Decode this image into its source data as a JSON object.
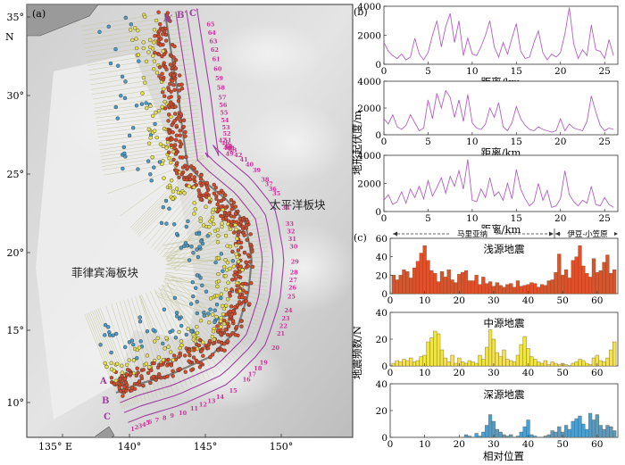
{
  "panel_a": {
    "label": "(a)",
    "north": "N",
    "lat_ticks": [
      "35°",
      "30°",
      "25°",
      "20°",
      "15°",
      "10°"
    ],
    "lon_ticks": [
      "135° E",
      "140°",
      "145°",
      "150°"
    ],
    "region_pacific": "太平洋板块",
    "region_philippine": "菲律宾海板块",
    "profile_lines": [
      "A",
      "B",
      "C"
    ],
    "profile_lines_top": [
      "A′",
      "B′",
      "C′"
    ],
    "colors": {
      "shallow": "#d24a2a",
      "intermediate": "#e6e04a",
      "deep": "#4a9ac8",
      "profile": "#a040a0",
      "numbers": "#d0309a"
    }
  },
  "panel_b": {
    "label": "(b)",
    "ylabel": "地形起伏度/m",
    "xlabel": "距离/km",
    "yticks": [
      0,
      2000,
      4000
    ],
    "xticks": [
      0,
      5,
      10,
      15,
      20,
      25
    ]
  },
  "panel_c": {
    "label": "(c)",
    "ylabel": "地震频数/N",
    "xlabel": "相对位置",
    "region_mariana": "马里亚纳",
    "region_izu": "伊豆-小笠原",
    "xticks": [
      0,
      10,
      20,
      30,
      40,
      50,
      60
    ],
    "subplots": [
      {
        "title": "浅源地震",
        "yticks": [
          0,
          20,
          40,
          60
        ]
      },
      {
        "title": "中源地震",
        "yticks": [
          0,
          20,
          40
        ]
      },
      {
        "title": "深源地震",
        "yticks": [
          0,
          20,
          40
        ]
      }
    ]
  },
  "chart_data": [
    {
      "type": "line",
      "panel": "b-1",
      "xlabel": "距离/km",
      "ylabel": "地形起伏度/m",
      "xlim": [
        0,
        26.5
      ],
      "ylim": [
        0,
        4000
      ],
      "x": [
        0,
        0.5,
        1,
        1.5,
        2,
        2.5,
        3,
        3.5,
        4,
        4.5,
        5,
        5.5,
        6,
        6.5,
        7,
        7.5,
        8,
        8.5,
        9,
        9.5,
        10,
        10.5,
        11,
        11.5,
        12,
        12.5,
        13,
        13.5,
        14,
        14.5,
        15,
        15.5,
        16,
        16.5,
        17,
        17.5,
        18,
        18.5,
        19,
        19.5,
        20,
        20.5,
        21,
        21.5,
        22,
        22.5,
        23,
        23.5,
        24,
        24.5,
        25,
        25.5,
        26
      ],
      "values": [
        1500,
        900,
        600,
        400,
        700,
        300,
        500,
        1800,
        700,
        300,
        800,
        2000,
        3000,
        1200,
        2600,
        3500,
        1500,
        3000,
        600,
        1800,
        700,
        600,
        1200,
        2000,
        3000,
        1200,
        500,
        1500,
        700,
        1800,
        2800,
        900,
        400,
        500,
        1500,
        2300,
        800,
        300,
        700,
        500,
        800,
        2100,
        3900,
        1400,
        400,
        1000,
        600,
        2700,
        1000,
        900,
        400,
        1700,
        600
      ]
    },
    {
      "type": "line",
      "panel": "b-2",
      "xlabel": "距离/km",
      "ylabel": "地形起伏度/m",
      "xlim": [
        0,
        26.5
      ],
      "ylim": [
        0,
        4000
      ],
      "x": [
        0,
        0.5,
        1,
        1.5,
        2,
        2.5,
        3,
        3.5,
        4,
        4.5,
        5,
        5.5,
        6,
        6.5,
        7,
        7.5,
        8,
        8.5,
        9,
        9.5,
        10,
        10.5,
        11,
        11.5,
        12,
        12.5,
        13,
        13.5,
        14,
        14.5,
        15,
        15.5,
        16,
        16.5,
        17,
        17.5,
        18,
        18.5,
        19,
        19.5,
        20,
        20.5,
        21,
        21.5,
        22,
        22.5,
        23,
        23.5,
        24,
        24.5,
        25,
        25.5,
        26
      ],
      "values": [
        1200,
        800,
        1500,
        600,
        400,
        700,
        1500,
        900,
        300,
        500,
        2600,
        1200,
        3100,
        2000,
        3300,
        2800,
        1300,
        2600,
        1000,
        3000,
        900,
        500,
        400,
        800,
        2000,
        1300,
        2400,
        600,
        300,
        900,
        2100,
        1200,
        700,
        400,
        300,
        600,
        400,
        300,
        200,
        300,
        1200,
        300,
        800,
        500,
        400,
        300,
        1000,
        2900,
        1700,
        700,
        300,
        500,
        400
      ]
    },
    {
      "type": "line",
      "panel": "b-3",
      "xlabel": "距离/km",
      "ylabel": "地形起伏度/m",
      "xlim": [
        0,
        26.5
      ],
      "ylim": [
        0,
        4000
      ],
      "x": [
        0,
        0.5,
        1,
        1.5,
        2,
        2.5,
        3,
        3.5,
        4,
        4.5,
        5,
        5.5,
        6,
        6.5,
        7,
        7.5,
        8,
        8.5,
        9,
        9.5,
        10,
        10.5,
        11,
        11.5,
        12,
        12.5,
        13,
        13.5,
        14,
        14.5,
        15,
        15.5,
        16,
        16.5,
        17,
        17.5,
        18,
        18.5,
        19,
        19.5,
        20,
        20.5,
        21,
        21.5,
        22,
        22.5,
        23,
        23.5,
        24,
        24.5,
        25,
        25.5,
        26
      ],
      "values": [
        800,
        1200,
        500,
        700,
        1400,
        600,
        1600,
        1000,
        1800,
        900,
        2200,
        1100,
        1700,
        2400,
        1300,
        2500,
        1800,
        2900,
        1600,
        3700,
        800,
        700,
        1600,
        1000,
        2400,
        1100,
        1400,
        800,
        2000,
        900,
        3000,
        1600,
        900,
        400,
        700,
        2000,
        800,
        1500,
        300,
        400,
        900,
        2900,
        1200,
        700,
        400,
        800,
        600,
        1800,
        500,
        400,
        1000,
        500,
        300
      ]
    },
    {
      "type": "bar",
      "panel": "c-1",
      "title": "浅源地震",
      "xlabel": "相对位置",
      "ylabel": "地震频数/N",
      "xlim": [
        0,
        66
      ],
      "ylim": [
        0,
        60
      ],
      "categories": [
        1,
        2,
        3,
        4,
        5,
        6,
        7,
        8,
        9,
        10,
        11,
        12,
        13,
        14,
        15,
        16,
        17,
        18,
        19,
        20,
        21,
        22,
        23,
        24,
        25,
        26,
        27,
        28,
        29,
        30,
        31,
        32,
        33,
        34,
        35,
        36,
        37,
        38,
        39,
        40,
        41,
        42,
        43,
        44,
        45,
        46,
        47,
        48,
        49,
        50,
        51,
        52,
        53,
        54,
        55,
        56,
        57,
        58,
        59,
        60,
        61,
        62,
        63,
        64,
        65
      ],
      "values": [
        20,
        15,
        20,
        26,
        24,
        17,
        28,
        35,
        44,
        52,
        36,
        25,
        22,
        13,
        24,
        18,
        26,
        15,
        12,
        21,
        23,
        25,
        14,
        14,
        20,
        10,
        18,
        11,
        13,
        8,
        12,
        9,
        7,
        10,
        11,
        7,
        14,
        8,
        9,
        10,
        12,
        11,
        7,
        10,
        9,
        14,
        15,
        23,
        43,
        20,
        26,
        17,
        36,
        40,
        52,
        30,
        22,
        18,
        38,
        23,
        25,
        34,
        42,
        22,
        26
      ]
    },
    {
      "type": "bar",
      "panel": "c-2",
      "title": "中源地震",
      "xlabel": "相对位置",
      "ylabel": "地震频数/N",
      "xlim": [
        0,
        66
      ],
      "ylim": [
        0,
        40
      ],
      "categories": [
        1,
        2,
        3,
        4,
        5,
        6,
        7,
        8,
        9,
        10,
        11,
        12,
        13,
        14,
        15,
        16,
        17,
        18,
        19,
        20,
        21,
        22,
        23,
        24,
        25,
        26,
        27,
        28,
        29,
        30,
        31,
        32,
        33,
        34,
        35,
        36,
        37,
        38,
        39,
        40,
        41,
        42,
        43,
        44,
        45,
        46,
        47,
        48,
        49,
        50,
        51,
        52,
        53,
        54,
        55,
        56,
        57,
        58,
        59,
        60,
        61,
        62,
        63,
        64,
        65
      ],
      "values": [
        2,
        4,
        3,
        5,
        4,
        6,
        3,
        4,
        7,
        8,
        18,
        21,
        26,
        24,
        12,
        6,
        3,
        8,
        2,
        6,
        3,
        2,
        4,
        3,
        2,
        8,
        5,
        14,
        27,
        20,
        10,
        7,
        12,
        5,
        4,
        3,
        8,
        16,
        22,
        13,
        7,
        5,
        3,
        2,
        4,
        1,
        3,
        2,
        1,
        2,
        1,
        0,
        2,
        3,
        5,
        4,
        2,
        1,
        6,
        8,
        4,
        3,
        6,
        12,
        18
      ]
    },
    {
      "type": "bar",
      "panel": "c-3",
      "title": "深源地震",
      "xlabel": "相对位置",
      "ylabel": "地震频数/N",
      "xlim": [
        0,
        66
      ],
      "ylim": [
        0,
        40
      ],
      "categories": [
        1,
        2,
        3,
        4,
        5,
        6,
        7,
        8,
        9,
        10,
        11,
        12,
        13,
        14,
        15,
        16,
        17,
        18,
        19,
        20,
        21,
        22,
        23,
        24,
        25,
        26,
        27,
        28,
        29,
        30,
        31,
        32,
        33,
        34,
        35,
        36,
        37,
        38,
        39,
        40,
        41,
        42,
        43,
        44,
        45,
        46,
        47,
        48,
        49,
        50,
        51,
        52,
        53,
        54,
        55,
        56,
        57,
        58,
        59,
        60,
        61,
        62,
        63,
        64,
        65
      ],
      "values": [
        0,
        0,
        0,
        0,
        0,
        0,
        0,
        0,
        0,
        0,
        0,
        0,
        0,
        0,
        0,
        0,
        0,
        0,
        0,
        0,
        0,
        2,
        1,
        0,
        3,
        1,
        4,
        9,
        17,
        12,
        6,
        4,
        2,
        1,
        2,
        0,
        1,
        4,
        8,
        13,
        2,
        1,
        0,
        0,
        1,
        2,
        5,
        4,
        8,
        4,
        9,
        6,
        12,
        14,
        16,
        10,
        6,
        18,
        13,
        17,
        9,
        6,
        9,
        8,
        5
      ]
    }
  ]
}
